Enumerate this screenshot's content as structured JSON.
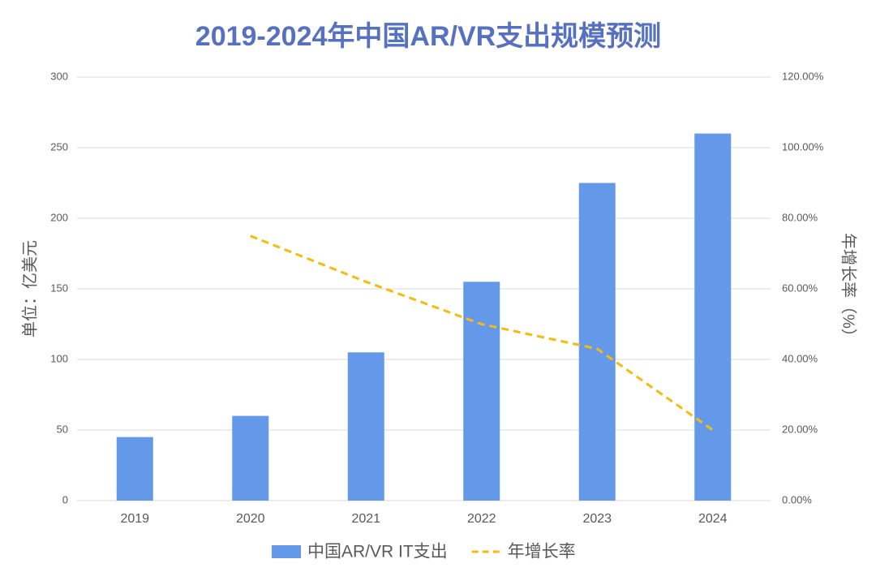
{
  "chart_data": {
    "type": "bar",
    "title": "2019-2024年中国AR/VR支出规模预测",
    "y_label": "单位：亿美元",
    "y2_label": "年增长率（%）",
    "categories": [
      "2019",
      "2020",
      "2021",
      "2022",
      "2023",
      "2024"
    ],
    "series": [
      {
        "name": "中国AR/VR IT支出",
        "color": "#6499e9",
        "values": [
          45,
          60,
          105,
          155,
          225,
          260
        ]
      },
      {
        "name": "年增长率",
        "type": "line",
        "dashed": true,
        "axis": "y2",
        "color": "#f7bb0f",
        "values": [
          null,
          75,
          62,
          50,
          43,
          20
        ]
      }
    ],
    "ylim": [
      0,
      300
    ],
    "yticks": [
      0,
      50,
      100,
      150,
      200,
      250,
      300
    ],
    "y2lim": [
      0,
      120
    ],
    "y2ticks": [
      {
        "value": 0,
        "label": "0.00%"
      },
      {
        "value": 20,
        "label": "20.00%"
      },
      {
        "value": 40,
        "label": "40.00%"
      },
      {
        "value": 60,
        "label": "60.00%"
      },
      {
        "value": 80,
        "label": "80.00%"
      },
      {
        "value": 100,
        "label": "100.00%"
      },
      {
        "value": 120,
        "label": "120.00%"
      }
    ],
    "grid": true,
    "legend": "bottom"
  }
}
